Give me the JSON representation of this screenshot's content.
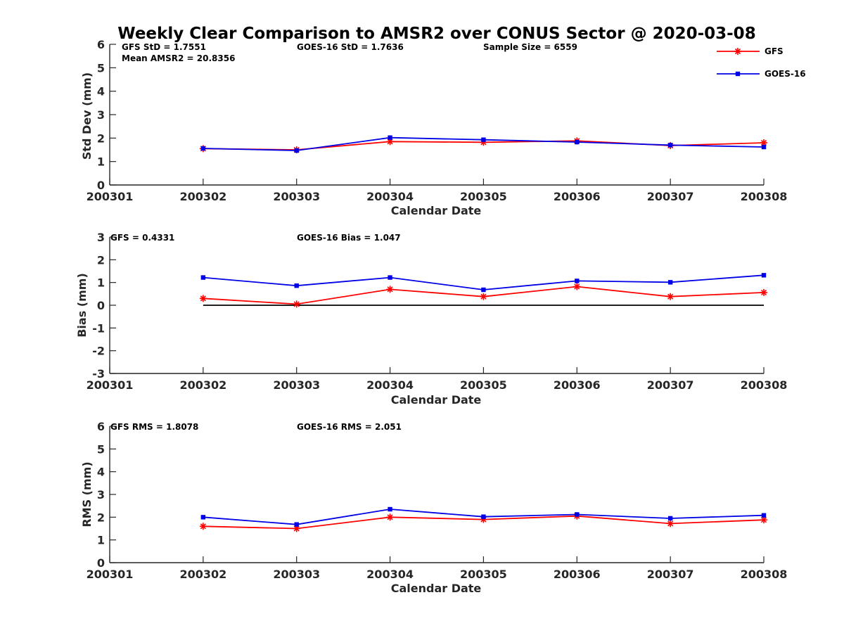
{
  "title": "Weekly Clear Comparison to AMSR2 over CONUS Sector @ 2020-03-08",
  "colors": {
    "gfs": "#ff0000",
    "goes": "#0000e6",
    "zero_line": "#000000",
    "axes": "#262626"
  },
  "legend": {
    "location": "top-right",
    "entries": [
      {
        "name": "GFS",
        "color": "#ff0000",
        "marker": "asterisk"
      },
      {
        "name": "GOES-16",
        "color": "#0000e6",
        "marker": "square"
      }
    ]
  },
  "chart_data": [
    {
      "type": "line",
      "panel": "std",
      "xlabel": "Calendar Date",
      "ylabel": "Std Dev (mm)",
      "xlim": [
        200301,
        200308
      ],
      "ylim": [
        0,
        6
      ],
      "x_ticks": [
        "200301",
        "200302",
        "200303",
        "200304",
        "200305",
        "200306",
        "200307",
        "200308"
      ],
      "y_ticks": [
        "0",
        "1",
        "2",
        "3",
        "4",
        "5",
        "6"
      ],
      "x": [
        200302,
        200303,
        200304,
        200305,
        200306,
        200307,
        200308
      ],
      "series": [
        {
          "name": "GFS",
          "color": "#ff0000",
          "marker": "asterisk",
          "values": [
            1.55,
            1.5,
            1.85,
            1.82,
            1.88,
            1.68,
            1.8
          ]
        },
        {
          "name": "GOES-16",
          "color": "#0000e6",
          "marker": "square",
          "values": [
            1.56,
            1.47,
            2.02,
            1.93,
            1.83,
            1.7,
            1.62
          ]
        }
      ],
      "annotations": [
        "GFS StD = 1.7551",
        "Mean AMSR2 = 20.8356",
        "GOES-16 StD = 1.7636",
        "Sample Size = 6559"
      ]
    },
    {
      "type": "line",
      "panel": "bias",
      "xlabel": "Calendar Date",
      "ylabel": "Bias (mm)",
      "xlim": [
        200301,
        200308
      ],
      "ylim": [
        -3,
        3
      ],
      "x_ticks": [
        "200301",
        "200302",
        "200303",
        "200304",
        "200305",
        "200306",
        "200307",
        "200308"
      ],
      "y_ticks": [
        "-3",
        "-2",
        "-1",
        "0",
        "1",
        "2",
        "3"
      ],
      "x": [
        200302,
        200303,
        200304,
        200305,
        200306,
        200307,
        200308
      ],
      "zero_line": true,
      "series": [
        {
          "name": "GFS",
          "color": "#ff0000",
          "marker": "asterisk",
          "values": [
            0.3,
            0.05,
            0.7,
            0.38,
            0.82,
            0.38,
            0.56
          ]
        },
        {
          "name": "GOES-16",
          "color": "#0000e6",
          "marker": "square",
          "values": [
            1.22,
            0.86,
            1.22,
            0.68,
            1.07,
            1.01,
            1.32
          ]
        }
      ],
      "annotations": [
        "GFS = 0.4331",
        "GOES-16 Bias  = 1.047"
      ]
    },
    {
      "type": "line",
      "panel": "rms",
      "xlabel": "Calendar Date",
      "ylabel": "RMS (mm)",
      "xlim": [
        200301,
        200308
      ],
      "ylim": [
        0,
        6
      ],
      "x_ticks": [
        "200301",
        "200302",
        "200303",
        "200304",
        "200305",
        "200306",
        "200307",
        "200308"
      ],
      "y_ticks": [
        "0",
        "1",
        "2",
        "3",
        "4",
        "5",
        "6"
      ],
      "x": [
        200302,
        200303,
        200304,
        200305,
        200306,
        200307,
        200308
      ],
      "series": [
        {
          "name": "GFS",
          "color": "#ff0000",
          "marker": "asterisk",
          "values": [
            1.6,
            1.5,
            2.0,
            1.9,
            2.05,
            1.72,
            1.88
          ]
        },
        {
          "name": "GOES-16",
          "color": "#0000e6",
          "marker": "square",
          "values": [
            2.0,
            1.68,
            2.35,
            2.02,
            2.12,
            1.95,
            2.08
          ]
        }
      ],
      "annotations": [
        "GFS RMS = 1.8078",
        "GOES-16 RMS = 2.051"
      ]
    }
  ]
}
